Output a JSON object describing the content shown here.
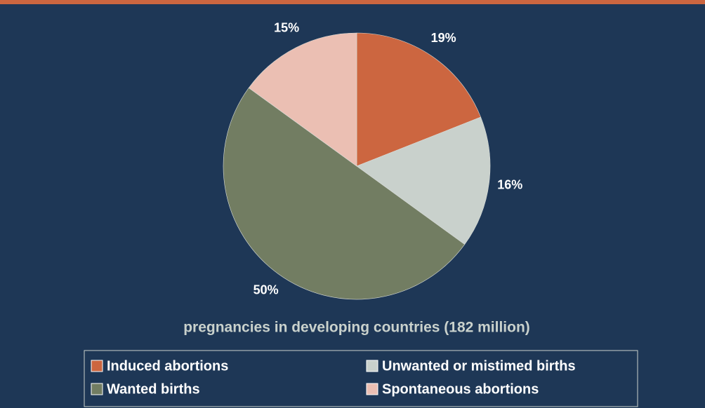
{
  "chart_data": {
    "type": "pie",
    "title": "pregnancies in developing countries (182 million)",
    "categories": [
      "Induced abortions",
      "Unwanted or mistimed births",
      "Wanted births",
      "Spontaneous abortions"
    ],
    "values": [
      19,
      16,
      50,
      15
    ],
    "value_labels": [
      "19%",
      "16%",
      "50%",
      "15%"
    ],
    "colors": [
      "#cc6640",
      "#c9d1cc",
      "#727d62",
      "#ebbfb3"
    ]
  }
}
